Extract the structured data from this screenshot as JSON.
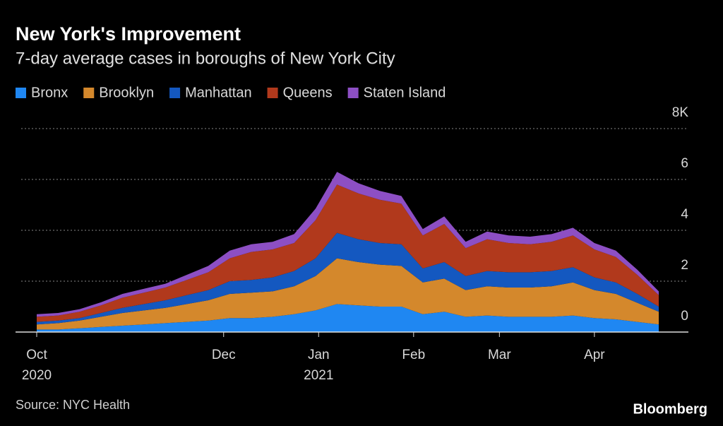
{
  "chart_data": {
    "type": "stacked-area",
    "title": "New York's Improvement",
    "subtitle": "7-day average cases in boroughs of New York City",
    "source": "Source: NYC Health",
    "brand": "Bloomberg",
    "x": [
      "2020-10-01",
      "2020-10-08",
      "2020-10-15",
      "2020-10-22",
      "2020-10-29",
      "2020-11-05",
      "2020-11-12",
      "2020-11-19",
      "2020-11-26",
      "2020-12-03",
      "2020-12-10",
      "2020-12-17",
      "2020-12-24",
      "2020-12-31",
      "2021-01-07",
      "2021-01-14",
      "2021-01-21",
      "2021-01-28",
      "2021-02-04",
      "2021-02-11",
      "2021-02-18",
      "2021-02-25",
      "2021-03-04",
      "2021-03-11",
      "2021-03-18",
      "2021-03-25",
      "2021-04-01",
      "2021-04-08",
      "2021-04-15",
      "2021-04-22"
    ],
    "xlim": [
      "2020-10-01",
      "2021-04-22"
    ],
    "xticks": [
      {
        "value": "2020-10-01",
        "label": "Oct",
        "sublabel": "2020"
      },
      {
        "value": "2020-12-01",
        "label": "Dec"
      },
      {
        "value": "2021-01-01",
        "label": "Jan",
        "sublabel": "2021"
      },
      {
        "value": "2021-02-01",
        "label": "Feb"
      },
      {
        "value": "2021-03-01",
        "label": "Mar"
      },
      {
        "value": "2021-04-01",
        "label": "Apr"
      }
    ],
    "ylim": [
      0,
      8
    ],
    "yticks": [
      0,
      2,
      4,
      6,
      {
        "value": 8,
        "label": "8K"
      }
    ],
    "grid": true,
    "series": [
      {
        "name": "Bronx",
        "color": "#1f87f2",
        "values": [
          0.1,
          0.1,
          0.15,
          0.2,
          0.25,
          0.3,
          0.35,
          0.4,
          0.45,
          0.55,
          0.55,
          0.6,
          0.7,
          0.85,
          1.1,
          1.05,
          1.0,
          1.0,
          0.7,
          0.8,
          0.6,
          0.65,
          0.6,
          0.6,
          0.6,
          0.65,
          0.55,
          0.5,
          0.4,
          0.3
        ]
      },
      {
        "name": "Brooklyn",
        "color": "#d4882c",
        "values": [
          0.2,
          0.25,
          0.3,
          0.4,
          0.5,
          0.55,
          0.6,
          0.7,
          0.8,
          0.95,
          1.0,
          1.0,
          1.1,
          1.35,
          1.8,
          1.7,
          1.65,
          1.6,
          1.25,
          1.3,
          1.05,
          1.15,
          1.15,
          1.15,
          1.2,
          1.3,
          1.1,
          1.0,
          0.75,
          0.5
        ]
      },
      {
        "name": "Manhattan",
        "color": "#1458c0",
        "values": [
          0.1,
          0.1,
          0.1,
          0.15,
          0.2,
          0.25,
          0.3,
          0.35,
          0.4,
          0.5,
          0.5,
          0.55,
          0.6,
          0.7,
          1.0,
          0.9,
          0.85,
          0.85,
          0.55,
          0.65,
          0.55,
          0.6,
          0.6,
          0.6,
          0.6,
          0.6,
          0.5,
          0.45,
          0.35,
          0.2
        ]
      },
      {
        "name": "Queens",
        "color": "#b1391c",
        "values": [
          0.2,
          0.2,
          0.25,
          0.3,
          0.4,
          0.45,
          0.5,
          0.6,
          0.7,
          0.9,
          1.1,
          1.1,
          1.1,
          1.5,
          1.9,
          1.8,
          1.7,
          1.6,
          1.3,
          1.5,
          1.1,
          1.25,
          1.15,
          1.1,
          1.15,
          1.25,
          1.1,
          1.0,
          0.75,
          0.45
        ]
      },
      {
        "name": "Staten Island",
        "color": "#8d4fc4",
        "values": [
          0.1,
          0.1,
          0.1,
          0.12,
          0.15,
          0.15,
          0.15,
          0.2,
          0.25,
          0.3,
          0.3,
          0.3,
          0.35,
          0.45,
          0.5,
          0.4,
          0.35,
          0.3,
          0.25,
          0.3,
          0.25,
          0.3,
          0.3,
          0.3,
          0.3,
          0.3,
          0.25,
          0.25,
          0.2,
          0.15
        ]
      }
    ]
  }
}
